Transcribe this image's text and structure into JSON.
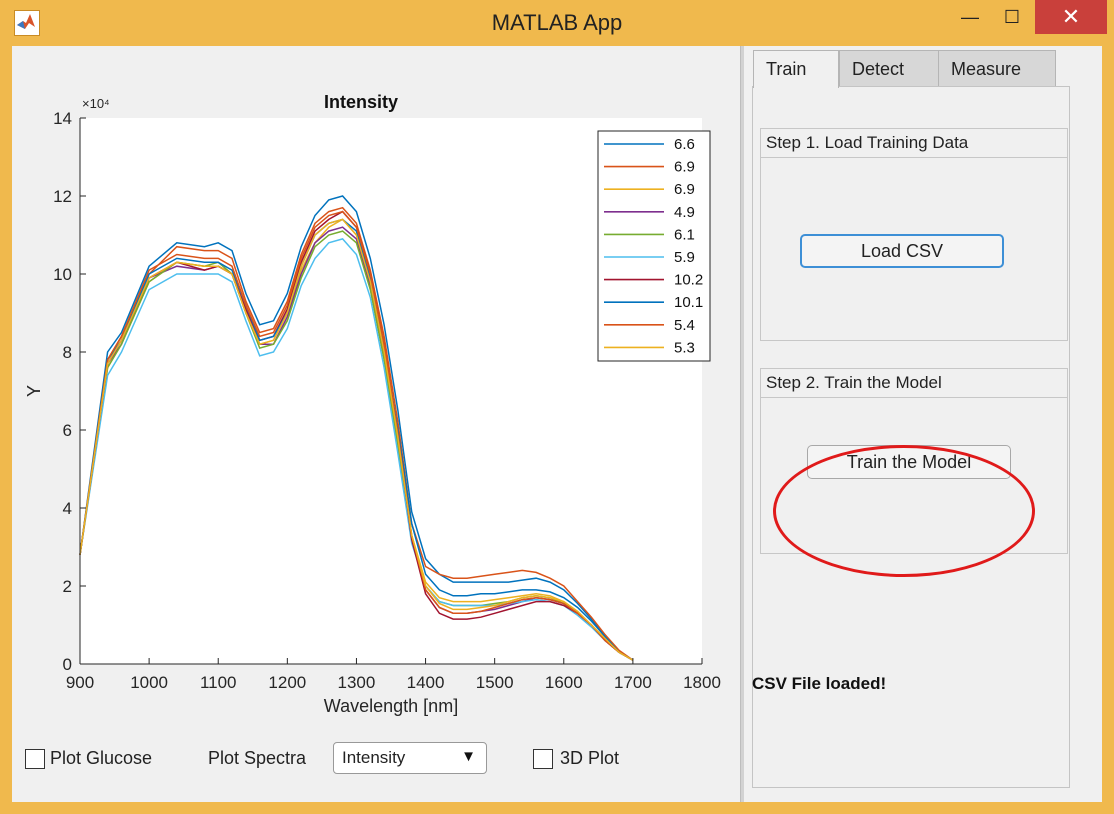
{
  "window": {
    "title": "MATLAB App"
  },
  "titlebar": {
    "minimize": "—",
    "maximize": "☐",
    "close": "✕"
  },
  "icons": {
    "app": "matlab-logo-icon",
    "minimize": "minimize-icon",
    "maximize": "maximize-icon",
    "close": "close-icon",
    "dropdown": "triangle-down-icon"
  },
  "tabs": [
    {
      "label": "Train",
      "active": true
    },
    {
      "label": "Detect",
      "active": false
    },
    {
      "label": "Measure",
      "active": false
    }
  ],
  "train_tab": {
    "step1": {
      "title": "Step 1. Load Training Data",
      "button": "Load CSV"
    },
    "step2": {
      "title": "Step 2. Train the Model",
      "button": "Train the Model"
    },
    "status": "CSV File loaded!"
  },
  "controls": {
    "plot_glucose": {
      "label": "Plot Glucose",
      "checked": false
    },
    "plot_spectra_label": "Plot Spectra",
    "plot_spectra_value": "Intensity",
    "plot_3d": {
      "label": "3D Plot",
      "checked": false
    }
  },
  "colors": {
    "accent_button_border": "#3d8fd6",
    "highlight_ring": "#e01a1a",
    "window_frame": "#f0b94d",
    "close_button": "#c9403b"
  },
  "chart_data": {
    "type": "line",
    "title": "Intensity",
    "xlabel": "Wavelength [nm]",
    "ylabel": "Y",
    "exponent_label": "×10⁴",
    "xlim": [
      900,
      1800
    ],
    "ylim": [
      0,
      14
    ],
    "xticks": [
      900,
      1000,
      1100,
      1200,
      1300,
      1400,
      1500,
      1600,
      1700,
      1800
    ],
    "yticks": [
      0,
      2,
      4,
      6,
      8,
      10,
      12,
      14
    ],
    "legend_position": "top-right",
    "grid": false,
    "x": [
      900,
      940,
      960,
      1000,
      1040,
      1080,
      1100,
      1120,
      1140,
      1160,
      1180,
      1200,
      1220,
      1240,
      1260,
      1280,
      1300,
      1320,
      1340,
      1360,
      1380,
      1400,
      1420,
      1440,
      1460,
      1480,
      1500,
      1520,
      1540,
      1560,
      1580,
      1600,
      1620,
      1640,
      1660,
      1680,
      1700
    ],
    "series": [
      {
        "name": "6.6",
        "color": "#0072bd",
        "values": [
          2.8,
          8.0,
          8.5,
          10.2,
          10.8,
          10.7,
          10.8,
          10.6,
          9.5,
          8.7,
          8.8,
          9.5,
          10.7,
          11.5,
          11.9,
          12.0,
          11.6,
          10.4,
          8.7,
          6.5,
          3.9,
          2.7,
          2.3,
          2.1,
          2.1,
          2.1,
          2.1,
          2.1,
          2.15,
          2.2,
          2.1,
          1.9,
          1.55,
          1.15,
          0.7,
          0.3,
          0.1
        ]
      },
      {
        "name": "6.9",
        "color": "#d95319",
        "values": [
          2.8,
          7.8,
          8.4,
          10.0,
          10.7,
          10.6,
          10.6,
          10.4,
          9.3,
          8.5,
          8.6,
          9.3,
          10.5,
          11.3,
          11.6,
          11.7,
          11.3,
          10.1,
          8.4,
          6.2,
          3.6,
          2.5,
          2.3,
          2.2,
          2.2,
          2.25,
          2.3,
          2.35,
          2.4,
          2.35,
          2.2,
          2.0,
          1.6,
          1.2,
          0.75,
          0.35,
          0.1
        ]
      },
      {
        "name": "6.9",
        "color": "#edb120",
        "values": [
          2.8,
          7.6,
          8.2,
          9.8,
          10.3,
          10.2,
          10.2,
          10.0,
          9.0,
          8.2,
          8.3,
          9.0,
          10.1,
          10.8,
          11.2,
          11.4,
          11.0,
          9.8,
          8.0,
          5.8,
          3.3,
          2.1,
          1.7,
          1.6,
          1.6,
          1.6,
          1.65,
          1.7,
          1.75,
          1.8,
          1.75,
          1.6,
          1.35,
          1.0,
          0.65,
          0.3,
          0.1
        ]
      },
      {
        "name": "4.9",
        "color": "#7e2f8e",
        "values": [
          2.8,
          7.7,
          8.2,
          9.9,
          10.2,
          10.1,
          10.2,
          10.0,
          9.0,
          8.2,
          8.2,
          8.9,
          10.0,
          10.8,
          11.1,
          11.2,
          10.9,
          9.7,
          7.9,
          5.7,
          3.2,
          1.9,
          1.45,
          1.3,
          1.3,
          1.35,
          1.4,
          1.5,
          1.6,
          1.7,
          1.65,
          1.55,
          1.3,
          1.0,
          0.6,
          0.3,
          0.1
        ]
      },
      {
        "name": "6.1",
        "color": "#77ac30",
        "values": [
          2.8,
          7.6,
          8.2,
          9.8,
          10.3,
          10.2,
          10.3,
          10.0,
          9.0,
          8.1,
          8.2,
          8.8,
          9.9,
          10.7,
          11.0,
          11.1,
          10.8,
          9.6,
          7.8,
          5.6,
          3.2,
          2.0,
          1.6,
          1.5,
          1.5,
          1.5,
          1.55,
          1.6,
          1.7,
          1.75,
          1.7,
          1.55,
          1.3,
          1.0,
          0.6,
          0.3,
          0.1
        ]
      },
      {
        "name": "5.9",
        "color": "#4dbeee",
        "values": [
          2.8,
          7.4,
          8.0,
          9.6,
          10.0,
          10.0,
          10.0,
          9.8,
          8.8,
          7.9,
          8.0,
          8.6,
          9.7,
          10.4,
          10.8,
          10.9,
          10.5,
          9.4,
          7.6,
          5.4,
          3.1,
          2.0,
          1.6,
          1.5,
          1.5,
          1.5,
          1.5,
          1.55,
          1.6,
          1.65,
          1.6,
          1.5,
          1.25,
          0.95,
          0.6,
          0.3,
          0.1
        ]
      },
      {
        "name": "10.2",
        "color": "#a2142f",
        "values": [
          2.8,
          7.7,
          8.3,
          9.9,
          10.3,
          10.1,
          10.2,
          10.0,
          9.1,
          8.3,
          8.4,
          9.1,
          10.3,
          11.1,
          11.4,
          11.6,
          11.2,
          10.0,
          8.2,
          5.9,
          3.2,
          1.8,
          1.3,
          1.15,
          1.15,
          1.2,
          1.3,
          1.4,
          1.5,
          1.6,
          1.6,
          1.5,
          1.3,
          1.0,
          0.6,
          0.3,
          0.1
        ]
      },
      {
        "name": "10.1",
        "color": "#0072bd",
        "values": [
          2.8,
          7.8,
          8.3,
          10.0,
          10.4,
          10.3,
          10.3,
          10.1,
          9.2,
          8.3,
          8.4,
          9.0,
          10.2,
          11.0,
          11.3,
          11.4,
          11.1,
          9.9,
          8.1,
          6.0,
          3.6,
          2.3,
          1.9,
          1.75,
          1.75,
          1.8,
          1.8,
          1.85,
          1.9,
          1.9,
          1.85,
          1.7,
          1.45,
          1.1,
          0.7,
          0.3,
          0.1
        ]
      },
      {
        "name": "5.4",
        "color": "#d95319",
        "values": [
          2.8,
          7.8,
          8.4,
          10.1,
          10.5,
          10.4,
          10.4,
          10.2,
          9.2,
          8.4,
          8.5,
          9.2,
          10.4,
          11.2,
          11.5,
          11.6,
          11.2,
          10.0,
          8.2,
          5.9,
          3.3,
          1.9,
          1.45,
          1.3,
          1.3,
          1.35,
          1.45,
          1.55,
          1.65,
          1.7,
          1.65,
          1.55,
          1.3,
          1.0,
          0.6,
          0.3,
          0.1
        ]
      },
      {
        "name": "5.3",
        "color": "#edb120",
        "values": [
          2.8,
          7.7,
          8.3,
          9.9,
          10.3,
          10.2,
          10.2,
          10.0,
          9.0,
          8.2,
          8.3,
          9.0,
          10.2,
          11.0,
          11.3,
          11.4,
          11.0,
          9.8,
          8.0,
          5.8,
          3.3,
          2.0,
          1.55,
          1.4,
          1.4,
          1.45,
          1.5,
          1.6,
          1.7,
          1.75,
          1.7,
          1.6,
          1.35,
          1.0,
          0.65,
          0.3,
          0.1
        ]
      }
    ]
  }
}
